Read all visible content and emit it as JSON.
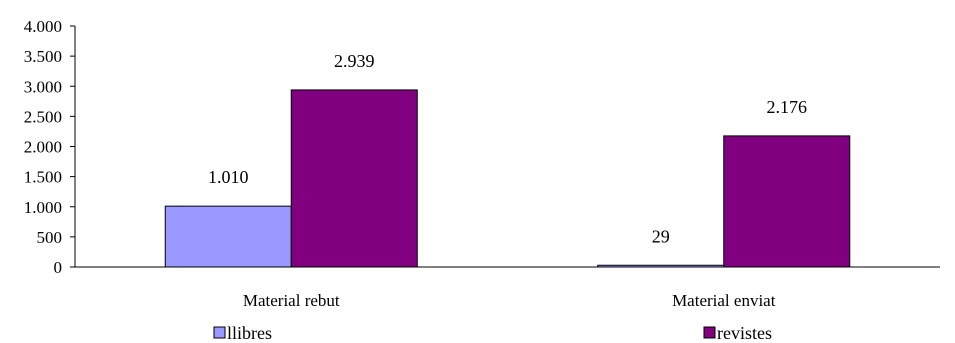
{
  "chart_data": {
    "type": "bar",
    "categories": [
      "Material rebut",
      "Material enviat"
    ],
    "series": [
      {
        "name": "llibres",
        "values": [
          1010,
          29
        ],
        "labels": [
          "1.010",
          "29"
        ],
        "color": "#9999ff"
      },
      {
        "name": "revistes",
        "values": [
          2939,
          2176
        ],
        "labels": [
          "2.939",
          "2.176"
        ],
        "color": "#800080"
      }
    ],
    "y_ticks": [
      0,
      500,
      1000,
      1500,
      2000,
      2500,
      3000,
      3500,
      4000
    ],
    "y_tick_labels": [
      "0",
      "500",
      "1.000",
      "1.500",
      "2.000",
      "2.500",
      "3.000",
      "3.500",
      "4.000"
    ],
    "ylim": [
      0,
      4000
    ],
    "grid": false,
    "legend_position": "bottom",
    "title": "",
    "xlabel": "",
    "ylabel": ""
  }
}
